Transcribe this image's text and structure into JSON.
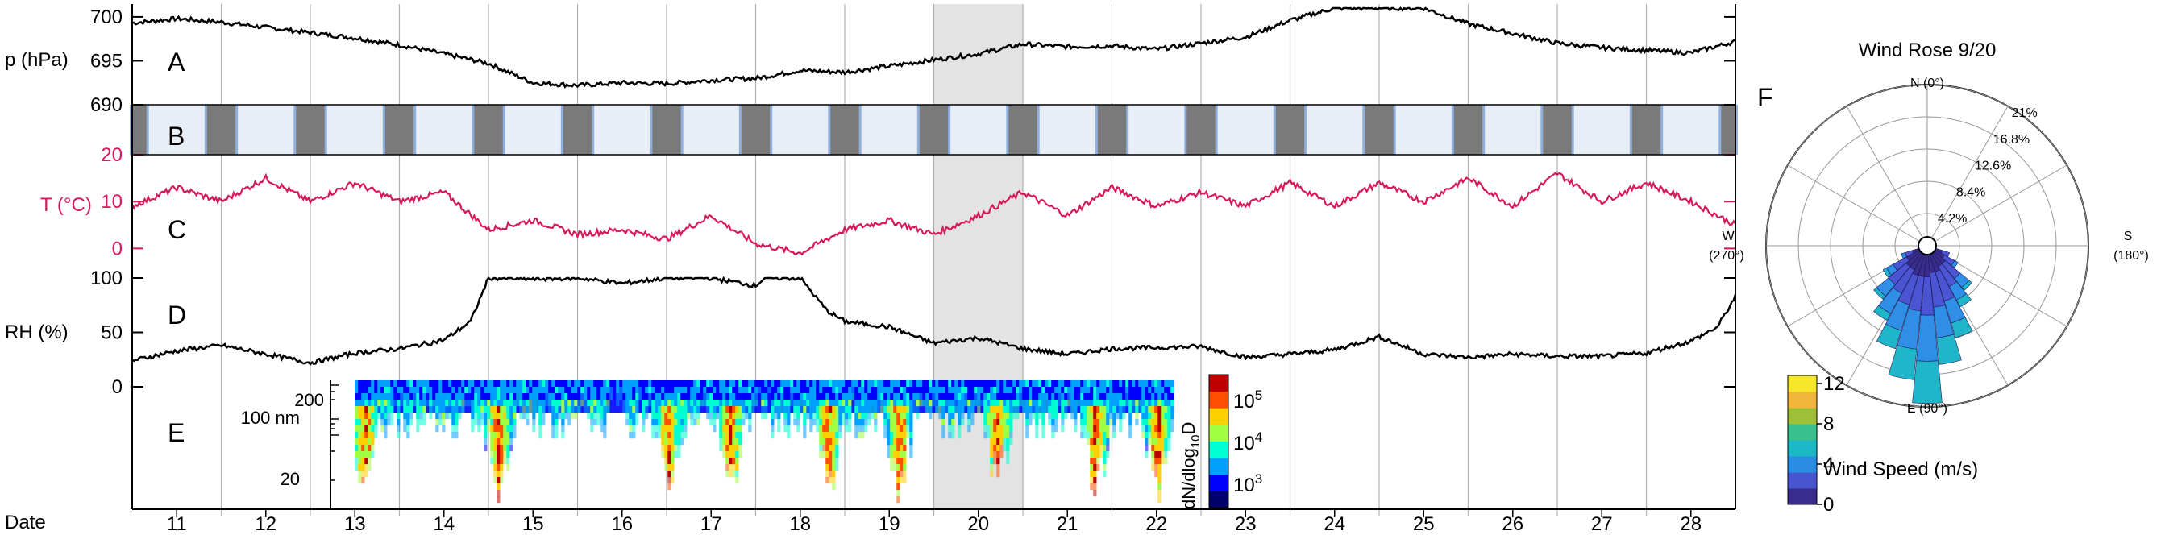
{
  "chart_data": [
    {
      "panel": "A",
      "type": "line",
      "ylabel": "p (hPa)",
      "yticks": [
        690,
        695,
        700
      ],
      "ylim": [
        690,
        701
      ],
      "xlim": [
        10.5,
        28.5
      ],
      "x": [
        10.5,
        11,
        11.5,
        12,
        12.5,
        13,
        13.5,
        14,
        14.5,
        15,
        15.5,
        16,
        16.5,
        17,
        17.5,
        18,
        18.5,
        19,
        19.5,
        20,
        20.5,
        21,
        21.5,
        22,
        22.5,
        23,
        23.5,
        24,
        24.5,
        25,
        25.5,
        26,
        26.5,
        27,
        27.5,
        28,
        28.5
      ],
      "y": [
        699.3,
        699.8,
        699.4,
        698.8,
        698.2,
        697.6,
        696.8,
        695.8,
        694.7,
        692.5,
        692.2,
        692.5,
        692.4,
        692.8,
        693.0,
        693.9,
        693.7,
        694.4,
        695.1,
        695.8,
        696.9,
        696.6,
        696.7,
        696.3,
        697.0,
        697.7,
        699.6,
        701.0,
        701.0,
        701.0,
        699.2,
        698.1,
        697.0,
        696.5,
        696.2,
        695.9,
        697.2
      ],
      "color": "#000000"
    },
    {
      "panel": "B",
      "type": "area",
      "description_role": "day-night bands",
      "night_color": "#7a7a7a",
      "day_color": "#e8eef5",
      "edge_color": "#7a9fd4"
    },
    {
      "panel": "C",
      "type": "line",
      "ylabel": "T (°C)",
      "yticks": [
        0,
        10,
        20
      ],
      "ylim": [
        -2,
        20
      ],
      "xlim": [
        10.5,
        28.5
      ],
      "x": [
        10.5,
        11,
        11.5,
        12,
        12.5,
        13,
        13.5,
        14,
        14.5,
        15,
        15.5,
        16,
        16.5,
        17,
        17.5,
        18,
        18.5,
        19,
        19.5,
        20,
        20.5,
        21,
        21.5,
        22,
        22.5,
        23,
        23.5,
        24,
        24.5,
        25,
        25.5,
        26,
        26.5,
        27,
        27.5,
        28,
        28.5
      ],
      "y": [
        9,
        13,
        10,
        15,
        10,
        14,
        10,
        12,
        4,
        6,
        3,
        4,
        2,
        7,
        1,
        -1,
        4,
        6,
        3,
        7,
        12,
        7,
        13,
        9,
        12,
        9,
        14,
        9,
        14,
        10,
        15,
        9,
        16,
        10,
        14,
        10,
        5
      ],
      "color": "#d6195b"
    },
    {
      "panel": "D",
      "type": "line",
      "ylabel": "RH (%)",
      "yticks": [
        0,
        50,
        100
      ],
      "ylim": [
        0,
        100
      ],
      "xlim": [
        10.5,
        28.5
      ],
      "x": [
        10.5,
        11,
        11.5,
        12,
        12.5,
        13,
        13.5,
        14,
        14.3,
        14.5,
        15,
        15.5,
        16,
        16.5,
        17,
        17.5,
        17.6,
        18,
        18.3,
        18.5,
        19,
        19.5,
        20,
        20.5,
        21,
        21.5,
        22,
        22.5,
        23,
        23.5,
        24,
        24.5,
        25,
        25.5,
        26,
        26.5,
        27,
        27.5,
        28,
        28.3,
        28.5
      ],
      "y": [
        24,
        33,
        38,
        30,
        22,
        31,
        35,
        43,
        60,
        100,
        99,
        100,
        95,
        100,
        100,
        93,
        100,
        100,
        70,
        60,
        55,
        40,
        45,
        35,
        30,
        35,
        36,
        37,
        27,
        30,
        34,
        46,
        30,
        27,
        30,
        28,
        28,
        31,
        42,
        55,
        83
      ],
      "color": "#000000"
    },
    {
      "panel": "E",
      "type": "heatmap",
      "colorbar_label_main": "dN/dlog",
      "colorbar_label_sub": "10",
      "colorbar_label_end": "D",
      "colorbar_ticks_base": "10",
      "colorbar_ticks_exp": [
        "3",
        "4",
        "5"
      ],
      "yticks": [
        "20",
        "100 nm",
        "200"
      ],
      "data_start_day": 13,
      "data_end_day": 22.2,
      "burst_days": [
        13.1,
        14.6,
        16.5,
        17.2,
        18.3,
        19.1,
        20.2,
        21.3,
        22.0
      ],
      "colorscale": [
        "#00006a",
        "#0000ff",
        "#00a0ff",
        "#00ffd0",
        "#a0ff40",
        "#ffd000",
        "#ff5000",
        "#c00000"
      ]
    },
    {
      "panel": "F",
      "type": "polar-bar",
      "title": "Wind Rose 9/20",
      "directions": [
        "N (0°)",
        "E (90°)",
        "S",
        "(180°)",
        "W",
        "(270°)"
      ],
      "radial_labels": [
        "4.2%",
        "8.4%",
        "12.6%",
        "16.8%",
        "21%"
      ],
      "radial_max": 21,
      "sectors": [
        {
          "angle": 225,
          "values": [
            2.0,
            2.5,
            1.5,
            0.5
          ]
        },
        {
          "angle": 236.25,
          "values": [
            2.0,
            3.0,
            2.0,
            1.0
          ]
        },
        {
          "angle": 247.5,
          "values": [
            2.5,
            4.0,
            3.0,
            2.0
          ]
        },
        {
          "angle": 258.75,
          "values": [
            2.5,
            4.5,
            4.0,
            3.5
          ]
        },
        {
          "angle": 270,
          "values": [
            3.0,
            5.0,
            6.0,
            5.5
          ]
        },
        {
          "angle": 281.25,
          "values": [
            3.0,
            4.5,
            5.0,
            4.0
          ]
        },
        {
          "angle": 292.5,
          "values": [
            3.0,
            4.0,
            3.5,
            2.5
          ]
        },
        {
          "angle": 303.75,
          "values": [
            2.5,
            3.5,
            3.0,
            1.0
          ]
        },
        {
          "angle": 315,
          "values": [
            2.5,
            3.0,
            2.0,
            0.5
          ]
        },
        {
          "angle": 326.25,
          "values": [
            2.0,
            2.0,
            1.0,
            0.5
          ]
        },
        {
          "angle": 213.75,
          "values": [
            1.5,
            1.5,
            0.5,
            0
          ]
        },
        {
          "angle": 202.5,
          "values": [
            1.0,
            1.0,
            0,
            0
          ]
        },
        {
          "angle": 337.5,
          "values": [
            1.0,
            1.0,
            0.5,
            0
          ]
        }
      ],
      "speed_colors": [
        "#3a2c8c",
        "#4b55d4",
        "#2f8ee6",
        "#1fb6c9"
      ],
      "colorbar_label": "Wind Speed (m/s)",
      "colorbar_ticks": [
        "0",
        "4",
        "8",
        "12"
      ],
      "colorbar_colors": [
        "#3a2c8c",
        "#4756d0",
        "#2a8de4",
        "#1db8c6",
        "#3ac08e",
        "#9ec038",
        "#f0b53a",
        "#f6e62a"
      ]
    }
  ],
  "panel_letters": [
    "A",
    "B",
    "C",
    "D",
    "E",
    "F"
  ],
  "x_axis": {
    "label": "Date",
    "days": [
      "11",
      "12",
      "13",
      "14",
      "15",
      "16",
      "17",
      "18",
      "19",
      "20",
      "21",
      "22",
      "23",
      "24",
      "25",
      "26",
      "27",
      "28"
    ]
  },
  "highlight_day": 20,
  "colors": {
    "highlight": "#e3e3e3",
    "temperature": "#d6195b",
    "grid": "#b0b0b0",
    "night": "#7a7a7a",
    "day": "#e8eef5"
  }
}
